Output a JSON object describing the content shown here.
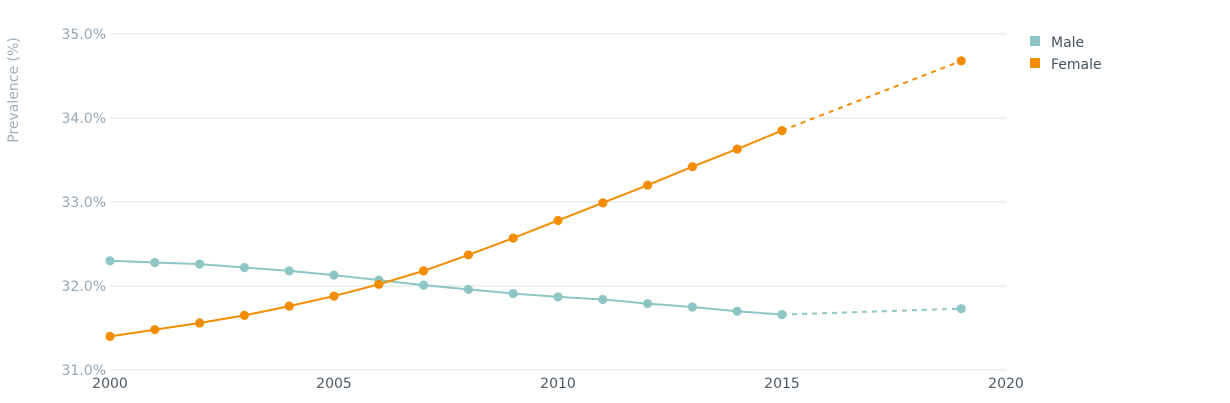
{
  "chart_data": {
    "type": "line",
    "ylabel": "Prevalence (%)",
    "xlim": [
      2000,
      2020
    ],
    "ylim": [
      31.0,
      35.0
    ],
    "y_ticks": [
      "31.0%",
      "32.0%",
      "33.0%",
      "34.0%",
      "35.0%"
    ],
    "x_ticks": [
      "2000",
      "2005",
      "2010",
      "2015",
      "2020"
    ],
    "grid": "horizontal",
    "legend_position": "top-right",
    "series": [
      {
        "name": "Male",
        "color": "#8dc6c4",
        "x": [
          2000,
          2001,
          2002,
          2003,
          2004,
          2005,
          2006,
          2007,
          2008,
          2009,
          2010,
          2011,
          2012,
          2013,
          2014,
          2015,
          2019
        ],
        "values": [
          32.3,
          32.28,
          32.26,
          32.22,
          32.18,
          32.13,
          32.07,
          32.01,
          31.96,
          31.91,
          31.87,
          31.84,
          31.79,
          31.75,
          31.7,
          31.66,
          31.73
        ],
        "solid_until_index": 15,
        "dashed_from_index": 15
      },
      {
        "name": "Female",
        "color": "#f28c00",
        "x": [
          2000,
          2001,
          2002,
          2003,
          2004,
          2005,
          2006,
          2007,
          2008,
          2009,
          2010,
          2011,
          2012,
          2013,
          2014,
          2015,
          2019
        ],
        "values": [
          31.4,
          31.48,
          31.56,
          31.65,
          31.76,
          31.88,
          32.02,
          32.18,
          32.37,
          32.57,
          32.78,
          32.99,
          33.2,
          33.42,
          33.63,
          33.85,
          34.68
        ],
        "solid_until_index": 15,
        "dashed_from_index": 15
      }
    ]
  }
}
